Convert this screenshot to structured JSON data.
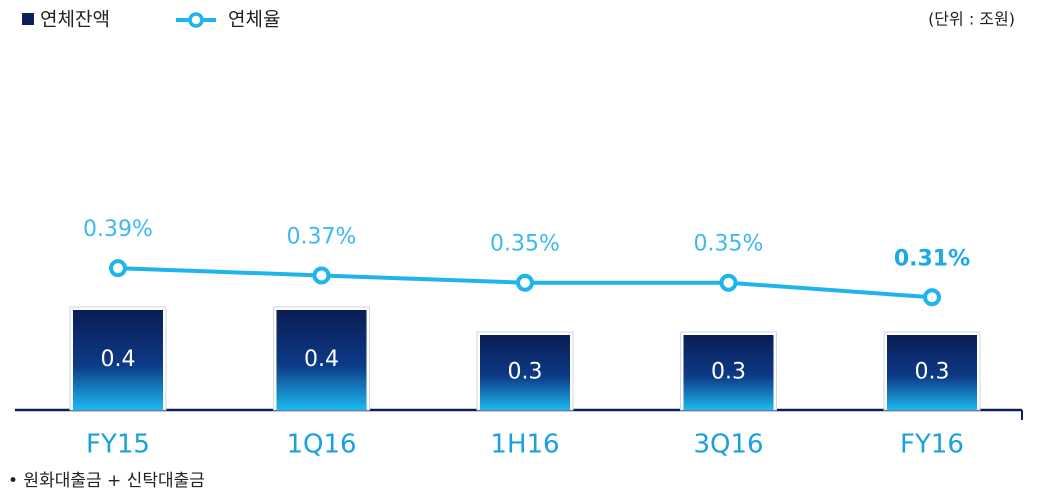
{
  "chart_data": {
    "type": "bar",
    "unit_label": "(단위 : 조원)",
    "footnote": "• 원화대출금 + 신탁대출금",
    "categories": [
      "FY15",
      "1Q16",
      "1H16",
      "3Q16",
      "FY16"
    ],
    "series": [
      {
        "name": "연체잔액",
        "color": "#0b1f5e",
        "values": [
          0.4,
          0.4,
          0.3,
          0.3,
          0.3
        ]
      },
      {
        "name": "연체율",
        "type": "line",
        "axis": "y2",
        "color": "#1fb4ee",
        "values": [
          0.39,
          0.37,
          0.35,
          0.35,
          0.31
        ],
        "value_labels": [
          "0.39%",
          "0.37%",
          "0.35%",
          "0.35%",
          "0.31%"
        ]
      }
    ],
    "ylim": [
      0,
      1.6
    ],
    "y2lim": [
      0,
      1.1
    ]
  }
}
